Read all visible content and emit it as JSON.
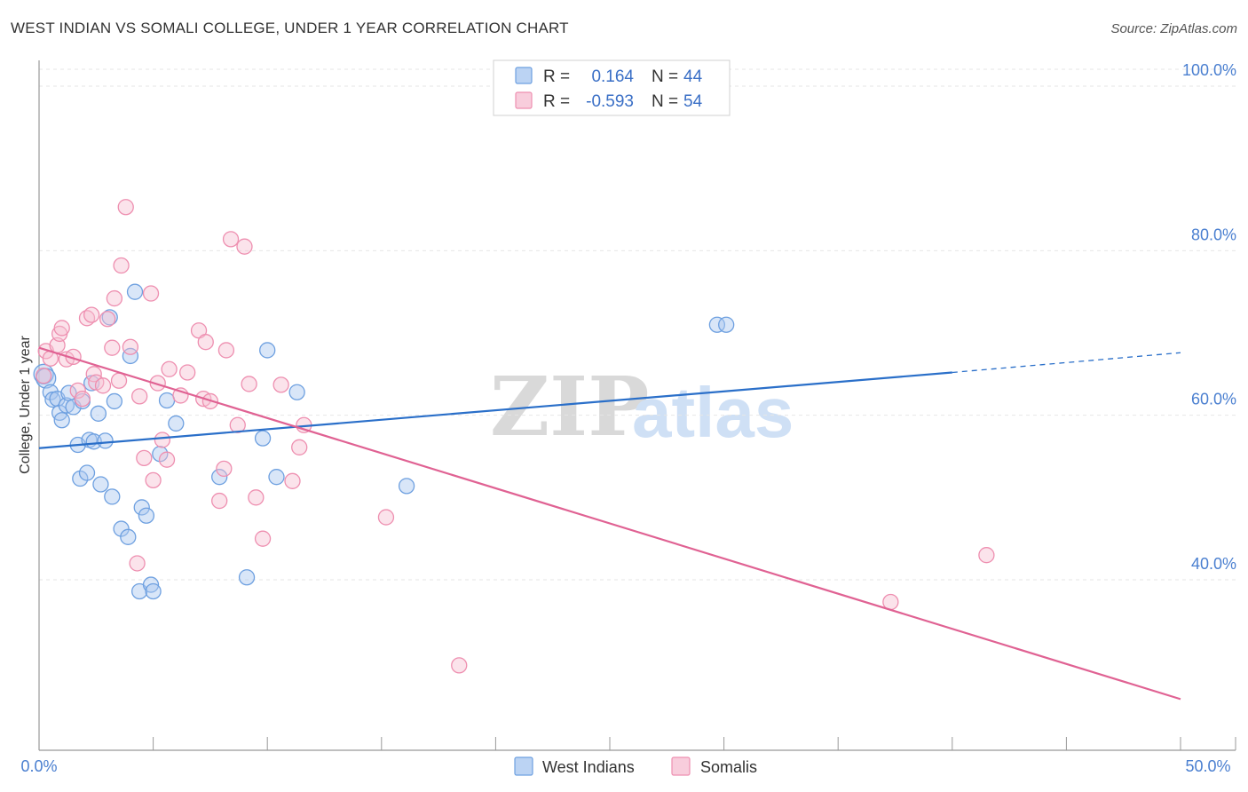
{
  "title": "WEST INDIAN VS SOMALI COLLEGE, UNDER 1 YEAR CORRELATION CHART",
  "source": "Source: ZipAtlas.com",
  "chart_data": {
    "type": "scatter",
    "xlabel": "",
    "ylabel": "College, Under 1 year",
    "xlim": [
      0,
      50
    ],
    "ylim": [
      20,
      104
    ],
    "x_tick_labels": [
      "0.0%",
      "50.0%"
    ],
    "y_ticks": [
      {
        "value": 40,
        "label": "40.0%"
      },
      {
        "value": 60,
        "label": "60.0%"
      },
      {
        "value": 80,
        "label": "80.0%"
      },
      {
        "value": 100,
        "label": "100.0%"
      }
    ],
    "watermark": {
      "zip": "ZIP",
      "atlas": "atlas"
    },
    "legend": [
      {
        "r_label": "R =",
        "r_value": "0.164",
        "n_label": "N =",
        "n_value": "44",
        "color": "#6ea0e0"
      },
      {
        "r_label": "R =",
        "r_value": "-0.593",
        "n_label": "N =",
        "n_value": "54",
        "color": "#ee8fb0"
      }
    ],
    "series": [
      {
        "name": "West Indians",
        "color": "#6ea0e0",
        "fill": "#aac8f0",
        "line_color": "#2a6fc9",
        "trend": {
          "x0": 0,
          "y0": 56.0,
          "x1": 40,
          "y1": 65.2,
          "dash_x1": 50,
          "dash_y1": 67.6
        },
        "points": [
          [
            0.2,
            65.0
          ],
          [
            0.3,
            64.5
          ],
          [
            0.5,
            62.8
          ],
          [
            0.6,
            61.9
          ],
          [
            0.8,
            62.0
          ],
          [
            0.9,
            60.3
          ],
          [
            1.0,
            59.4
          ],
          [
            1.2,
            61.2
          ],
          [
            1.3,
            62.7
          ],
          [
            1.5,
            61.0
          ],
          [
            1.7,
            56.4
          ],
          [
            1.8,
            52.3
          ],
          [
            1.9,
            61.7
          ],
          [
            2.1,
            53.0
          ],
          [
            2.2,
            57.0
          ],
          [
            2.3,
            63.9
          ],
          [
            2.4,
            56.8
          ],
          [
            2.6,
            60.2
          ],
          [
            2.7,
            51.6
          ],
          [
            2.9,
            56.9
          ],
          [
            3.1,
            71.9
          ],
          [
            3.2,
            50.1
          ],
          [
            3.3,
            61.7
          ],
          [
            3.6,
            46.2
          ],
          [
            3.9,
            45.2
          ],
          [
            4.0,
            67.2
          ],
          [
            4.2,
            75.0
          ],
          [
            4.4,
            38.6
          ],
          [
            4.5,
            48.8
          ],
          [
            4.7,
            47.8
          ],
          [
            4.9,
            39.4
          ],
          [
            5.0,
            38.6
          ],
          [
            5.3,
            55.3
          ],
          [
            5.6,
            61.8
          ],
          [
            6.0,
            59.0
          ],
          [
            7.9,
            52.5
          ],
          [
            9.1,
            40.3
          ],
          [
            9.8,
            57.2
          ],
          [
            10.0,
            67.9
          ],
          [
            10.4,
            52.5
          ],
          [
            11.3,
            62.8
          ],
          [
            16.1,
            51.4
          ],
          [
            29.7,
            71.0
          ],
          [
            30.1,
            71.0
          ]
        ]
      },
      {
        "name": "Somalis",
        "color": "#ee8fb0",
        "fill": "#f6c1d3",
        "line_color": "#e06293",
        "trend": {
          "x0": 0,
          "y0": 68.2,
          "x1": 50,
          "y1": 25.5
        },
        "points": [
          [
            0.2,
            64.8
          ],
          [
            0.3,
            67.8
          ],
          [
            0.5,
            66.9
          ],
          [
            0.8,
            68.5
          ],
          [
            0.9,
            69.9
          ],
          [
            1.0,
            70.6
          ],
          [
            1.2,
            66.8
          ],
          [
            1.5,
            67.1
          ],
          [
            1.7,
            63.0
          ],
          [
            1.9,
            62.0
          ],
          [
            2.1,
            71.8
          ],
          [
            2.3,
            72.2
          ],
          [
            2.4,
            65.0
          ],
          [
            2.5,
            64.0
          ],
          [
            2.8,
            63.6
          ],
          [
            3.0,
            71.7
          ],
          [
            3.2,
            68.2
          ],
          [
            3.3,
            74.2
          ],
          [
            3.5,
            64.2
          ],
          [
            3.6,
            78.2
          ],
          [
            3.8,
            85.3
          ],
          [
            4.0,
            68.3
          ],
          [
            4.3,
            42.0
          ],
          [
            4.4,
            62.3
          ],
          [
            4.6,
            54.8
          ],
          [
            4.9,
            74.8
          ],
          [
            5.0,
            52.1
          ],
          [
            5.2,
            63.9
          ],
          [
            5.4,
            57.0
          ],
          [
            5.6,
            54.6
          ],
          [
            5.7,
            65.6
          ],
          [
            6.2,
            62.4
          ],
          [
            6.5,
            65.2
          ],
          [
            7.0,
            70.3
          ],
          [
            7.2,
            62.0
          ],
          [
            7.3,
            68.9
          ],
          [
            7.5,
            61.7
          ],
          [
            7.9,
            49.6
          ],
          [
            8.1,
            53.5
          ],
          [
            8.2,
            67.9
          ],
          [
            8.4,
            81.4
          ],
          [
            8.7,
            58.8
          ],
          [
            9.0,
            80.5
          ],
          [
            9.2,
            63.8
          ],
          [
            9.5,
            50.0
          ],
          [
            9.8,
            45.0
          ],
          [
            10.6,
            63.7
          ],
          [
            11.1,
            52.0
          ],
          [
            11.4,
            56.1
          ],
          [
            11.6,
            58.8
          ],
          [
            15.2,
            47.6
          ],
          [
            18.4,
            29.6
          ],
          [
            37.3,
            37.3
          ],
          [
            41.5,
            43.0
          ]
        ]
      }
    ]
  }
}
